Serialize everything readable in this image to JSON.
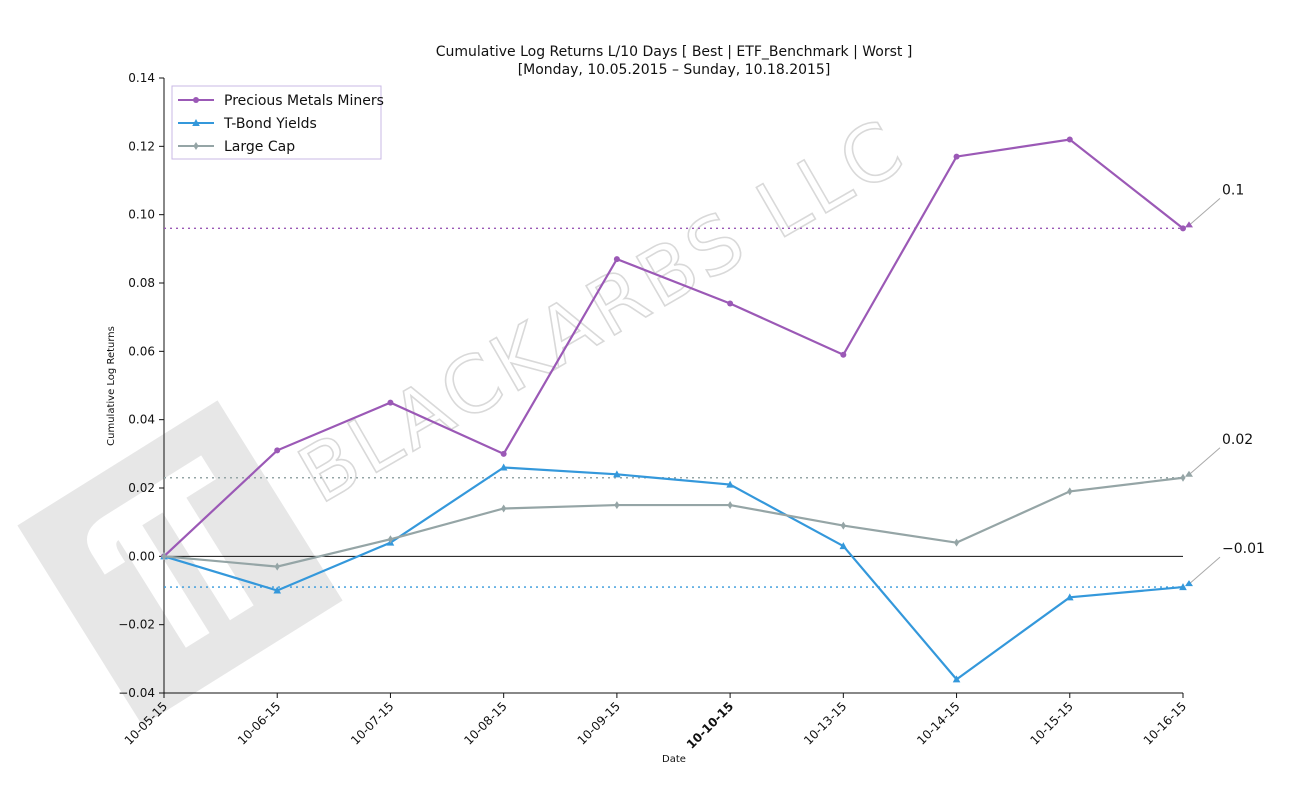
{
  "chart_data": {
    "type": "line",
    "title": "Cumulative Log Returns L/10 Days [ Best | ETF_Benchmark | Worst ]",
    "subtitle": "[Monday, 10.05.2015 – Sunday, 10.18.2015]",
    "xlabel": "Date",
    "ylabel": "Cumulative Log Returns",
    "ylim": [
      -0.04,
      0.14
    ],
    "yticks": [
      "0.14",
      "0.12",
      "0.10",
      "0.08",
      "0.06",
      "0.04",
      "0.02",
      "0.00",
      "−0.02",
      "−0.04"
    ],
    "ytick_values": [
      0.14,
      0.12,
      0.1,
      0.08,
      0.06,
      0.04,
      0.02,
      0.0,
      -0.02,
      -0.04
    ],
    "categories": [
      "10-05-15",
      "10-06-15",
      "10-07-15",
      "10-08-15",
      "10-09-15",
      "10-10-15",
      "10-13-15",
      "10-14-15",
      "10-15-15",
      "10-16-15"
    ],
    "highlighted_category": "10-10-15",
    "grid": false,
    "legend_position": "top-left",
    "zero_line": true,
    "series": [
      {
        "name": "Precious Metals Miners",
        "color": "#9b59b6",
        "marker": "circle",
        "values": [
          0.0,
          0.031,
          0.045,
          0.03,
          0.087,
          0.074,
          0.059,
          0.117,
          0.122,
          0.096
        ],
        "final_label": "0.1",
        "reference_level": 0.096
      },
      {
        "name": "T-Bond Yields",
        "color": "#3498db",
        "marker": "triangle",
        "values": [
          0.0,
          -0.01,
          0.004,
          0.026,
          0.024,
          0.021,
          0.003,
          -0.036,
          -0.012,
          -0.009
        ],
        "final_label": "−0.01",
        "reference_level": -0.009
      },
      {
        "name": "Large Cap",
        "color": "#95a5a6",
        "marker": "diamond",
        "values": [
          0.0,
          -0.003,
          0.005,
          0.014,
          0.015,
          0.015,
          0.009,
          0.004,
          0.019,
          0.023
        ],
        "final_label": "0.02",
        "reference_level": 0.023
      }
    ]
  },
  "watermark": {
    "text": "BLACKARBS LLC",
    "logo": "pi-logo"
  }
}
